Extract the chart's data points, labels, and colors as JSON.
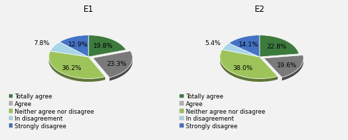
{
  "e1": {
    "title": "E1",
    "values": [
      19.8,
      23.3,
      36.2,
      7.8,
      12.9
    ],
    "explode": [
      0,
      0.12,
      0,
      0,
      0
    ],
    "labels": [
      "19.8%",
      "23.3%",
      "36.2%",
      "7.8%",
      "12.9%"
    ],
    "startangle": 90
  },
  "e2": {
    "title": "E2",
    "values": [
      22.8,
      19.6,
      38.0,
      5.4,
      14.1
    ],
    "explode": [
      0,
      0.12,
      0,
      0,
      0
    ],
    "labels": [
      "22.8%",
      "19.6%",
      "38.0%",
      "5.4%",
      "14.1%"
    ],
    "startangle": 90
  },
  "colors": [
    "#3d7a3d",
    "#7a7a7a",
    "#9dc45a",
    "#a8d5e8",
    "#4472c4"
  ],
  "legend_labels": [
    "Totally agree",
    "Agree",
    "Neither agree nor disagree",
    "In disagreement",
    "Strongly disagree"
  ],
  "legend_marker_colors": [
    "#3d7a3d",
    "#b0b0b0",
    "#9dc45a",
    "#a8d5e8",
    "#4472c4"
  ],
  "bg_color": "#f2f2f2",
  "title_fontsize": 8.5,
  "label_fontsize": 6.5,
  "legend_fontsize": 6.0
}
